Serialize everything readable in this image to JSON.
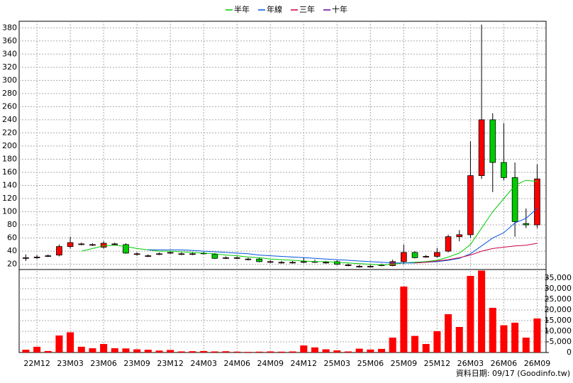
{
  "chart_data": {
    "type": "candlestick",
    "categories": [
      null,
      "22M12",
      null,
      null,
      "23M03",
      null,
      null,
      "23M06",
      null,
      null,
      "23M09",
      null,
      null,
      "23M12",
      null,
      null,
      "24M03",
      null,
      null,
      "24M06",
      null,
      null,
      "24M09",
      null,
      null,
      "24M12",
      null,
      null,
      "25M03",
      null,
      null,
      "25M06",
      null,
      null,
      "25M09",
      null,
      null,
      "25M12",
      null,
      null,
      "26M03",
      null,
      null,
      "26M06",
      null,
      null,
      "26M09"
    ],
    "open": [
      29,
      31,
      33,
      34,
      47,
      51,
      50,
      46,
      51,
      50,
      36,
      33,
      36,
      38,
      36,
      36,
      37,
      35,
      30,
      30,
      28,
      28,
      24,
      23,
      23,
      24,
      24,
      23,
      24,
      19,
      17,
      17,
      19,
      18,
      24,
      38,
      32,
      32,
      40,
      62,
      65,
      155,
      240,
      175,
      152,
      82,
      80
    ],
    "high": [
      35,
      34,
      35,
      50,
      62,
      53,
      52,
      55,
      53,
      52,
      38,
      35,
      38,
      40,
      38,
      38,
      39,
      37,
      32,
      32,
      30,
      30,
      26,
      25,
      25,
      30,
      27,
      25,
      26,
      21,
      19,
      19,
      21,
      27,
      50,
      40,
      34,
      45,
      65,
      72,
      207,
      385,
      250,
      235,
      175,
      105,
      172
    ],
    "low": [
      25,
      28,
      31,
      32,
      44,
      49,
      48,
      44,
      49,
      36,
      33,
      31,
      34,
      36,
      34,
      34,
      35,
      28,
      28,
      28,
      26,
      23,
      22,
      21,
      21,
      22,
      22,
      21,
      19,
      17,
      15,
      15,
      17,
      17,
      20,
      29,
      30,
      30,
      38,
      55,
      60,
      150,
      130,
      148,
      62,
      75,
      75
    ],
    "close": [
      30,
      31,
      33,
      47,
      53,
      51,
      50,
      52,
      51,
      37,
      36,
      33,
      36,
      38,
      36,
      36,
      37,
      29,
      30,
      30,
      28,
      24,
      24,
      23,
      23,
      24,
      24,
      23,
      20,
      19,
      17,
      17,
      19,
      24,
      38,
      30,
      32,
      38,
      62,
      65,
      155,
      240,
      175,
      152,
      85,
      80,
      150
    ],
    "volume": [
      1300,
      2700,
      700,
      8000,
      9500,
      2700,
      2000,
      4000,
      2000,
      1900,
      1500,
      1300,
      900,
      1200,
      500,
      600,
      700,
      500,
      600,
      400,
      300,
      400,
      500,
      400,
      500,
      3300,
      2400,
      1500,
      1000,
      500,
      1800,
      1400,
      1700,
      7000,
      31000,
      7800,
      4000,
      10000,
      18000,
      12000,
      36000,
      38500,
      21000,
      12800,
      14000,
      7000,
      16000
    ],
    "up_color": "#ff0000",
    "down_color": "#00cc00",
    "volume_color": "#ff0000",
    "series": [
      {
        "name": "半年",
        "color": "#00cc00",
        "values": [
          null,
          null,
          null,
          null,
          null,
          40,
          44,
          48,
          49,
          47,
          44,
          42,
          40,
          40,
          39,
          38,
          37,
          36,
          34,
          33,
          31,
          30,
          28,
          27,
          26,
          25,
          24,
          24,
          23,
          22,
          21,
          20,
          19,
          20,
          22,
          23,
          24,
          26,
          31,
          37,
          50,
          75,
          100,
          120,
          140,
          148,
          146
        ]
      },
      {
        "name": "年線",
        "color": "#0055dd",
        "values": [
          null,
          null,
          null,
          null,
          null,
          null,
          null,
          null,
          null,
          null,
          null,
          42,
          42,
          42,
          42,
          41,
          40,
          39,
          38,
          37,
          36,
          34,
          33,
          32,
          31,
          30,
          29,
          28,
          27,
          26,
          25,
          24,
          23,
          22,
          22,
          22,
          23,
          24,
          26,
          29,
          36,
          48,
          60,
          68,
          83,
          90,
          105
        ]
      },
      {
        "name": "三年",
        "color": "#cc0044",
        "values": [
          null,
          null,
          null,
          null,
          null,
          null,
          null,
          null,
          null,
          null,
          null,
          null,
          null,
          null,
          null,
          null,
          null,
          null,
          null,
          null,
          null,
          null,
          null,
          null,
          null,
          null,
          null,
          null,
          null,
          null,
          null,
          null,
          null,
          null,
          null,
          22,
          23,
          25,
          27,
          30,
          34,
          40,
          44,
          46,
          48,
          49,
          52
        ]
      },
      {
        "name": "十年",
        "color": "#660099",
        "values": [
          null,
          null,
          null,
          null,
          null,
          null,
          null,
          null,
          null,
          null,
          null,
          null,
          null,
          null,
          null,
          null,
          null,
          null,
          null,
          null,
          null,
          null,
          null,
          null,
          null,
          null,
          null,
          null,
          null,
          null,
          null,
          null,
          null,
          null,
          null,
          null,
          null,
          null,
          null,
          null,
          null,
          null,
          null,
          null,
          null,
          null,
          null
        ]
      }
    ],
    "ylim": [
      12,
      390
    ],
    "yticks": [
      20,
      40,
      60,
      80,
      100,
      120,
      140,
      160,
      180,
      200,
      220,
      240,
      260,
      280,
      300,
      320,
      340,
      360,
      380
    ],
    "y2lim": [
      0,
      39000
    ],
    "y2ticks": [
      0,
      {
        "value": 5000,
        "label": "5,000"
      },
      {
        "value": 10000,
        "label": "10,000"
      },
      {
        "value": 15000,
        "label": "15,000"
      },
      {
        "value": 20000,
        "label": "20,000"
      },
      {
        "value": 25000,
        "label": "25,000"
      },
      {
        "value": 30000,
        "label": "30,000"
      },
      {
        "value": 35000,
        "label": "35,000"
      }
    ],
    "grid": true,
    "footer": "資料日期: 09/17 (Goodinfo.tw)"
  }
}
